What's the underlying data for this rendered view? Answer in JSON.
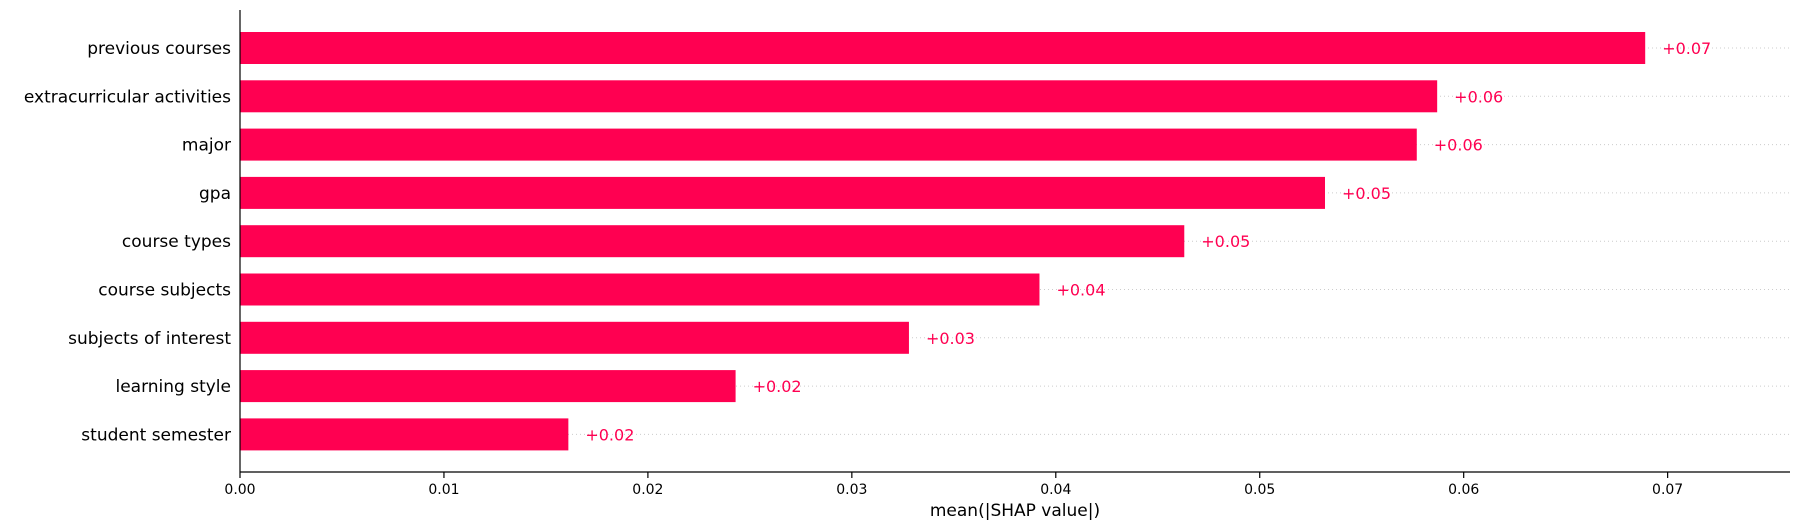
{
  "colors": {
    "bar": "#ff0051",
    "value_text": "#ff0051",
    "axis": "#000000",
    "gridline": "#cccccc"
  },
  "chart_data": {
    "type": "bar",
    "orientation": "horizontal",
    "title": "",
    "xlabel": "mean(|SHAP value|)",
    "ylabel": "",
    "xlim": [
      0.0,
      0.076
    ],
    "xticks": [
      0.0,
      0.01,
      0.02,
      0.03,
      0.04,
      0.05,
      0.06,
      0.07
    ],
    "xtick_labels": [
      "0.00",
      "0.01",
      "0.02",
      "0.03",
      "0.04",
      "0.05",
      "0.06",
      "0.07"
    ],
    "grid": "dotted row lines",
    "legend": "none",
    "categories": [
      "previous courses",
      "extracurricular activities",
      "major",
      "gpa",
      "course types",
      "course subjects",
      "subjects of interest",
      "learning style",
      "student semester"
    ],
    "values": [
      0.0689,
      0.0587,
      0.0577,
      0.0532,
      0.0463,
      0.0392,
      0.0328,
      0.0243,
      0.0161
    ],
    "value_labels": [
      "+0.07",
      "+0.06",
      "+0.06",
      "+0.05",
      "+0.05",
      "+0.04",
      "+0.03",
      "+0.02",
      "+0.02"
    ]
  }
}
